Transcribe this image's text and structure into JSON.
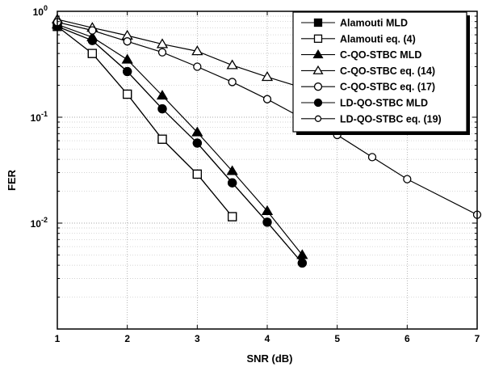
{
  "chart_data": {
    "type": "line",
    "xlabel": "SNR (dB)",
    "ylabel": "FER",
    "xlim": [
      1,
      7
    ],
    "ylim": [
      0.001,
      1
    ],
    "yscale": "log",
    "grid": true,
    "legend_position": "top-right",
    "x_ticks": [
      "1",
      "2",
      "3",
      "4",
      "5",
      "6",
      "7"
    ],
    "y_ticks": [
      {
        "value": 1,
        "base": "10",
        "exp": "0"
      },
      {
        "value": 0.1,
        "base": "10",
        "exp": "-1"
      },
      {
        "value": 0.01,
        "base": "10",
        "exp": "-2"
      }
    ],
    "series": [
      {
        "name": "Alamouti MLD",
        "marker": "square",
        "fill": "#000000",
        "x": [
          1,
          1.5,
          2,
          2.5,
          3,
          3.5
        ],
        "y": [
          0.72,
          0.4,
          0.165,
          0.062,
          0.029,
          0.0115
        ]
      },
      {
        "name": "Alamouti  eq. (4)",
        "marker": "square",
        "fill": "#ffffff",
        "x": [
          1,
          1.5,
          2,
          2.5,
          3,
          3.5
        ],
        "y": [
          0.72,
          0.4,
          0.165,
          0.062,
          0.029,
          0.0115
        ]
      },
      {
        "name": "C-QO-STBC MLD",
        "marker": "triangle",
        "fill": "#000000",
        "x": [
          1,
          1.5,
          2,
          2.5,
          3,
          3.5,
          4,
          4.5
        ],
        "y": [
          0.75,
          0.57,
          0.35,
          0.16,
          0.072,
          0.031,
          0.013,
          0.005
        ]
      },
      {
        "name": "C-QO-STBC eq. (14)",
        "marker": "triangle",
        "fill": "#ffffff",
        "x": [
          1,
          1.5,
          2,
          2.5,
          3,
          3.5,
          4,
          4.5,
          5
        ],
        "y": [
          0.84,
          0.7,
          0.59,
          0.49,
          0.42,
          0.31,
          0.24,
          0.19,
          0.14
        ]
      },
      {
        "name": "C-QO-STBC eq. (17)",
        "marker": "circle",
        "fill": "#ffffff",
        "x": [
          1,
          1.5,
          2,
          2.5,
          3,
          3.5,
          4,
          4.5
        ],
        "y": [
          0.72,
          0.53,
          0.27,
          0.12,
          0.057,
          0.024,
          0.0102,
          0.0042
        ]
      },
      {
        "name": "LD-QO-STBC MLD",
        "marker": "circle",
        "fill": "#000000",
        "x": [
          1,
          1.5,
          2,
          2.5,
          3,
          3.5,
          4,
          4.5
        ],
        "y": [
          0.72,
          0.53,
          0.27,
          0.12,
          0.057,
          0.024,
          0.0102,
          0.0042
        ]
      },
      {
        "name": "LD-QO-STBC eq. (19)",
        "marker": "circle",
        "fill": "#ffffff",
        "x": [
          1,
          1.5,
          2,
          2.5,
          3,
          3.5,
          4,
          4.5,
          5,
          5.5,
          6,
          7
        ],
        "y": [
          0.79,
          0.66,
          0.52,
          0.41,
          0.3,
          0.215,
          0.148,
          0.098,
          0.068,
          0.042,
          0.026,
          0.012
        ]
      }
    ]
  }
}
